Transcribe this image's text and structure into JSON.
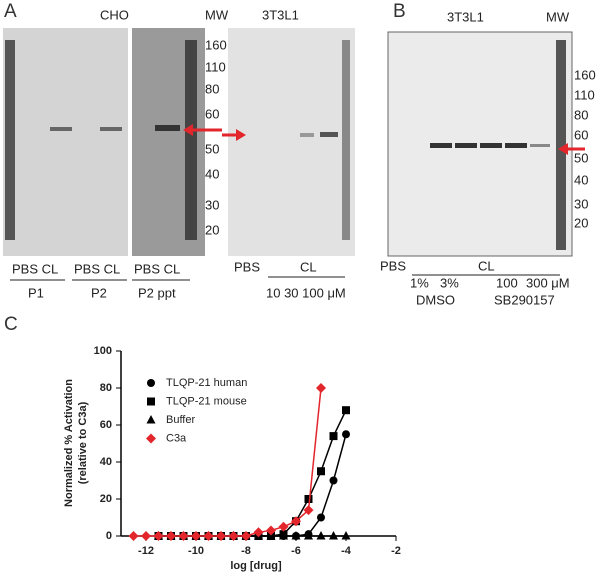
{
  "panel_a": {
    "label": "A",
    "cell_line_1": "CHO",
    "mw": "MW",
    "cell_line_2": "3T3L1",
    "mw_markers": [
      "160",
      "110",
      "80",
      "60",
      "50",
      "40",
      "30",
      "20"
    ],
    "lane_labels": [
      "PBS CL",
      "PBS CL",
      "PBS CL"
    ],
    "groups": [
      "P1",
      "P2",
      "P2 ppt"
    ],
    "treatment_labels": [
      "PBS",
      "CL"
    ],
    "concentrations": "10 30 100 μM"
  },
  "panel_b": {
    "label": "B",
    "cell_line": "3T3L1",
    "mw": "MW",
    "mw_markers": [
      "160",
      "110",
      "80",
      "60",
      "50",
      "40",
      "30",
      "20"
    ],
    "treatment_labels": [
      "PBS",
      "CL"
    ],
    "concentrations": [
      "1%",
      "3%",
      "100",
      "300 μM"
    ],
    "groups": [
      "DMSO",
      "SB290157"
    ]
  },
  "panel_c": {
    "label": "C"
  },
  "chart_data": {
    "type": "scatter",
    "y_label": [
      "Normalized % Activation",
      "(relative to C3a)"
    ],
    "x_label": "log [drug]",
    "xlim": [
      -13,
      -2
    ],
    "xticks": [
      -12,
      -10,
      -8,
      -6,
      -4,
      -2
    ],
    "ylim": [
      0,
      100
    ],
    "yticks": [
      0,
      20,
      40,
      60,
      80,
      100
    ],
    "legend": "top-left",
    "series": [
      {
        "name": "TLQP-21 human",
        "color": "#000000",
        "marker": "circle",
        "x": [
          -11.5,
          -11,
          -10.5,
          -10,
          -9.5,
          -9,
          -8.5,
          -8,
          -7.5,
          -7,
          -6.5,
          -6,
          -5.5,
          -5,
          -4.5,
          -4
        ],
        "values": [
          0,
          0,
          0,
          0,
          0,
          0,
          0,
          0,
          0,
          0,
          0,
          0,
          1,
          10,
          30,
          55
        ]
      },
      {
        "name": "TLQP-21 mouse",
        "color": "#000000",
        "marker": "square",
        "x": [
          -11.5,
          -11,
          -10.5,
          -10,
          -9.5,
          -9,
          -8.5,
          -8,
          -7.5,
          -7,
          -6.5,
          -6,
          -5.5,
          -5,
          -4.5,
          -4
        ],
        "values": [
          0,
          0,
          0,
          0,
          0,
          0,
          0,
          0,
          0,
          0,
          1,
          8,
          20,
          35,
          54,
          68
        ]
      },
      {
        "name": "Buffer",
        "color": "#000000",
        "marker": "triangle",
        "x": [
          -11.5,
          -11,
          -10.5,
          -10,
          -9.5,
          -9,
          -8.5,
          -8,
          -7.5,
          -7,
          -6.5,
          -6,
          -5.5,
          -5,
          -4.5,
          -4
        ],
        "values": [
          0,
          0,
          0,
          0,
          0,
          0,
          0,
          0,
          0,
          0,
          0,
          0,
          0,
          0,
          0,
          0
        ]
      },
      {
        "name": "C3a",
        "color": "#e3262c",
        "marker": "diamond",
        "x": [
          -12.5,
          -12,
          -11.5,
          -11,
          -10.5,
          -10,
          -9.5,
          -9,
          -8.5,
          -8,
          -7.5,
          -7,
          -6.5,
          -6,
          -5.5,
          -5
        ],
        "values": [
          0,
          0,
          0,
          0,
          0,
          0,
          0,
          0,
          0,
          0,
          2,
          3,
          5,
          8,
          14,
          80
        ]
      }
    ]
  }
}
